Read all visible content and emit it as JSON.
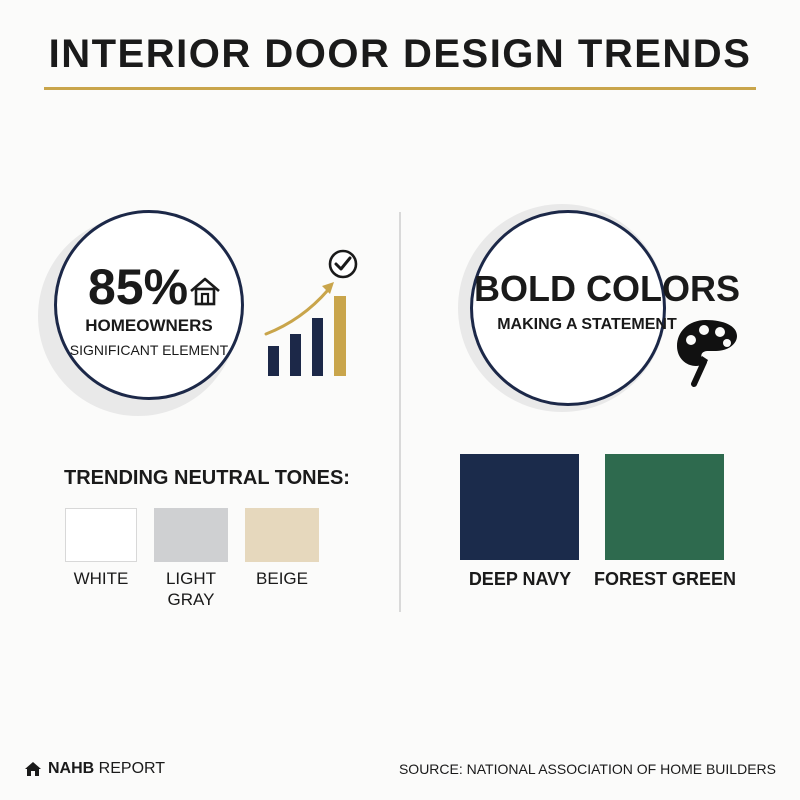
{
  "title": "INTERIOR DOOR DESIGN TRENDS",
  "stat": {
    "value": "85%",
    "line1": "HOMEOWNERS",
    "line2": "SIGNIFICANT ELEMENT"
  },
  "bold": {
    "title": "BOLD COLORS",
    "subtitle": "MAKING A STATEMENT"
  },
  "neutral": {
    "heading": "TRENDING NEUTRAL TONES:",
    "swatches": [
      {
        "label": "WHITE",
        "color": "#ffffff"
      },
      {
        "label": "LIGHT GRAY",
        "color": "#cfd0d2"
      },
      {
        "label": "BEIGE",
        "color": "#e6d8bd"
      }
    ]
  },
  "bold_swatches": [
    {
      "label": "DEEP NAVY",
      "color": "#1b2b4b"
    },
    {
      "label": "FOREST GREEN",
      "color": "#2e6a4e"
    }
  ],
  "footer": {
    "brand": "NAHB",
    "brand_suffix": "REPORT",
    "source": "SOURCE: NATIONAL ASSOCIATION OF HOME BUILDERS"
  },
  "colors": {
    "accent_gold": "#c9a54b",
    "navy": "#1c2848"
  },
  "icons": [
    "house-icon",
    "bar-chart-icon",
    "check-circle-icon",
    "palette-icon",
    "house-logo-icon"
  ]
}
